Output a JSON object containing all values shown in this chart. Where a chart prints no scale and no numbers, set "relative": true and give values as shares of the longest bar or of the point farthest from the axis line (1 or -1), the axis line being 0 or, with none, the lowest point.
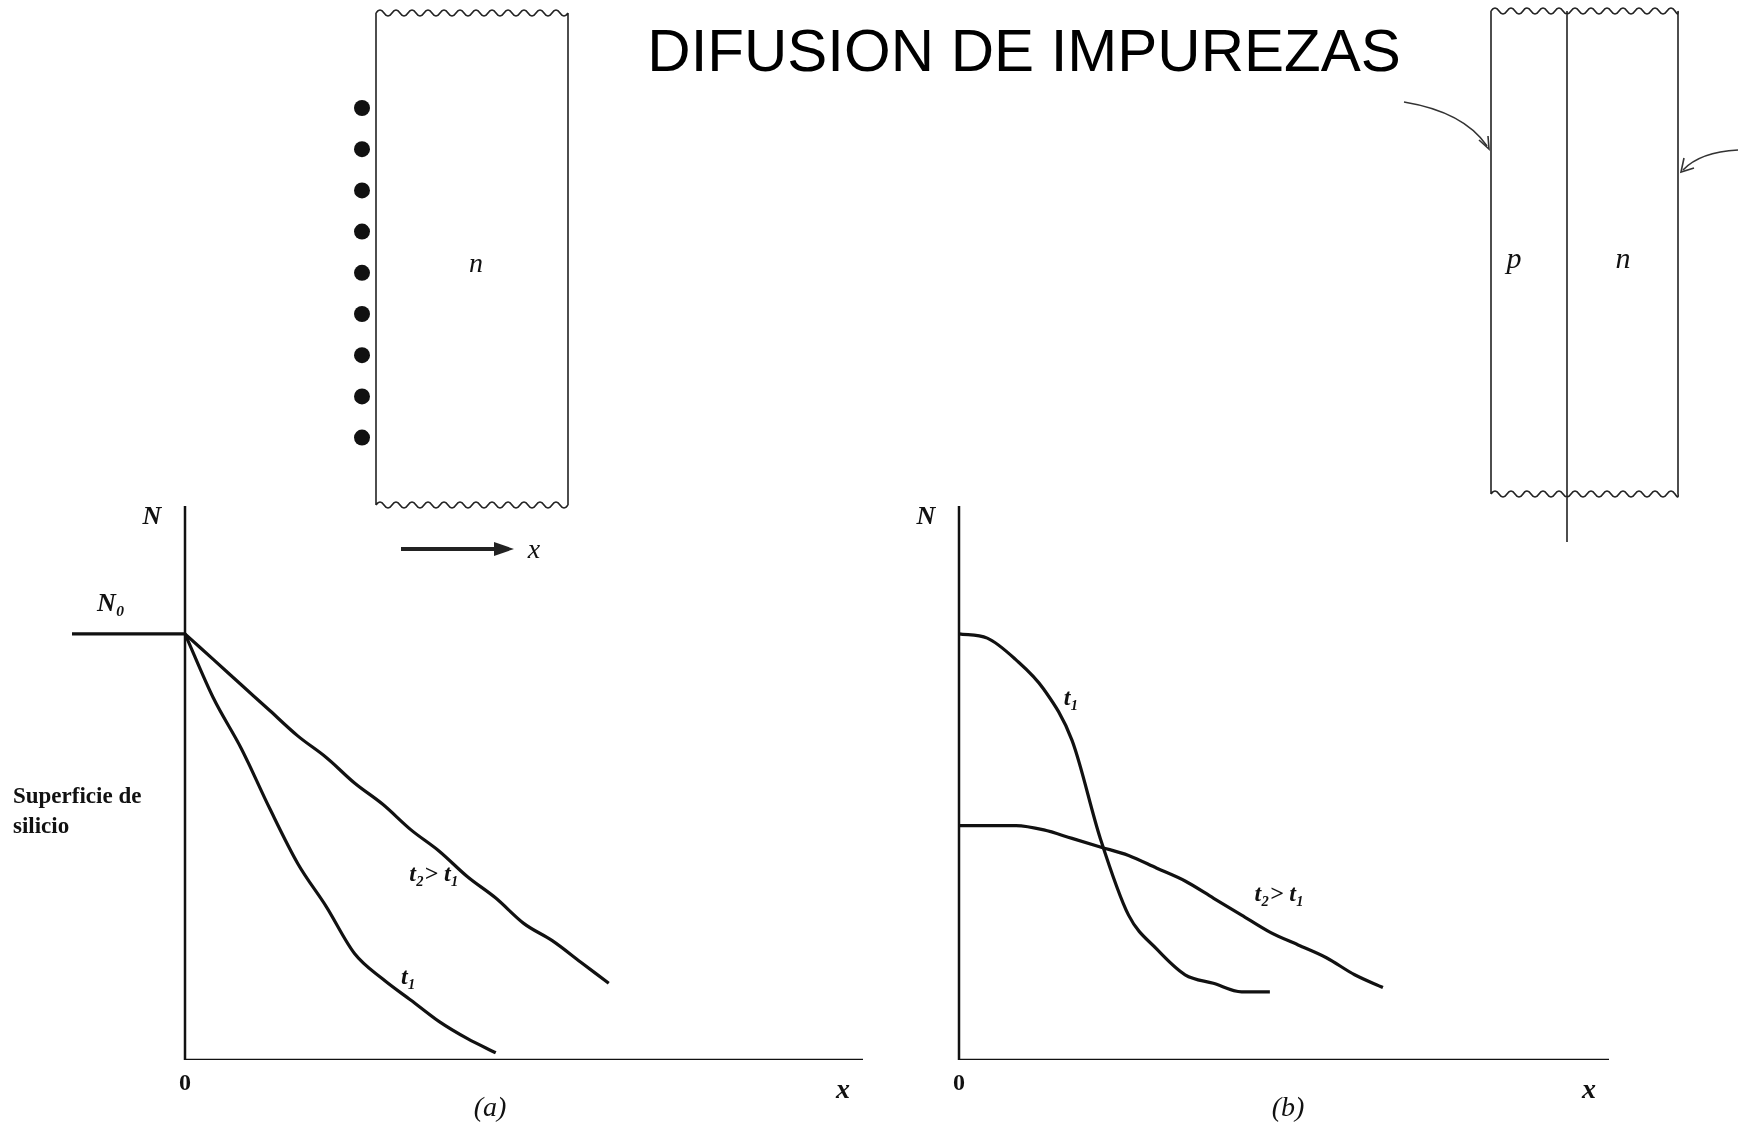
{
  "chart_data": [
    {
      "type": "line",
      "title": "DIFUSION DE IMPUREZAS",
      "xlabel": "x",
      "ylabel": "N",
      "relative": true,
      "marker": "none",
      "line_style": "solid",
      "categories": [
        null,
        null,
        null,
        null,
        null,
        null,
        null,
        null,
        null,
        null,
        null,
        null,
        null,
        null,
        null,
        null,
        null,
        null,
        null,
        null,
        null,
        null,
        null,
        null,
        null,
        null,
        null,
        null,
        null
      ],
      "series": [
        {
          "color": "#111111",
          "values": [
            1,
            1,
            1,
            1,
            1,
            null,
            null,
            null,
            null,
            null,
            null,
            null,
            null,
            null,
            null,
            null,
            null,
            null,
            null,
            null,
            null,
            null,
            null,
            null,
            null,
            null,
            null,
            null,
            null
          ]
        },
        {
          "name": "t₁",
          "color": "#111111",
          "values": [
            null,
            null,
            null,
            null,
            1,
            0.85,
            0.73,
            0.59,
            0.46,
            0.36,
            0.25,
            0.19,
            0.14,
            0.09,
            0.05,
            0.017,
            null,
            null,
            null,
            null,
            null,
            null,
            null,
            null,
            null,
            null,
            null,
            null,
            null
          ]
        },
        {
          "name": "t₂> t₁",
          "color": "#111111",
          "values": [
            null,
            null,
            null,
            null,
            1,
            0.94,
            0.88,
            0.82,
            0.76,
            0.71,
            0.65,
            0.6,
            0.54,
            0.49,
            0.43,
            0.38,
            0.32,
            0.28,
            0.23,
            0.18,
            null,
            null,
            null,
            null,
            null,
            null,
            null,
            null,
            null
          ]
        }
      ],
      "annotations": [
        "N₀",
        "Superficie de silicio",
        "n",
        "x",
        "(a)",
        "0"
      ]
    },
    {
      "type": "line",
      "xlabel": "x",
      "ylabel": "N",
      "relative": true,
      "marker": "none",
      "line_style": "solid",
      "categories": [
        null,
        null,
        null,
        null,
        null,
        null,
        null,
        null,
        null,
        null,
        null,
        null,
        null,
        null,
        null,
        null,
        null,
        null,
        null,
        null,
        null,
        null,
        null,
        null
      ],
      "series": [
        {
          "name": "t₁",
          "color": "#111111",
          "values": [
            1,
            0.99,
            0.94,
            0.87,
            0.75,
            0.52,
            0.34,
            0.26,
            0.2,
            0.18,
            0.16,
            0.16,
            null,
            null,
            null,
            null,
            null,
            null,
            null,
            null,
            null,
            null,
            null,
            null
          ]
        },
        {
          "name": "t₂> t₁",
          "color": "#111111",
          "values": [
            0.55,
            0.55,
            0.55,
            0.54,
            0.52,
            0.5,
            0.48,
            0.45,
            0.42,
            0.38,
            0.34,
            0.3,
            0.27,
            0.24,
            0.2,
            0.17,
            null,
            null,
            null,
            null,
            null,
            null,
            null,
            null
          ]
        }
      ],
      "annotations": [
        "p",
        "n",
        "(b)",
        "0"
      ]
    }
  ]
}
